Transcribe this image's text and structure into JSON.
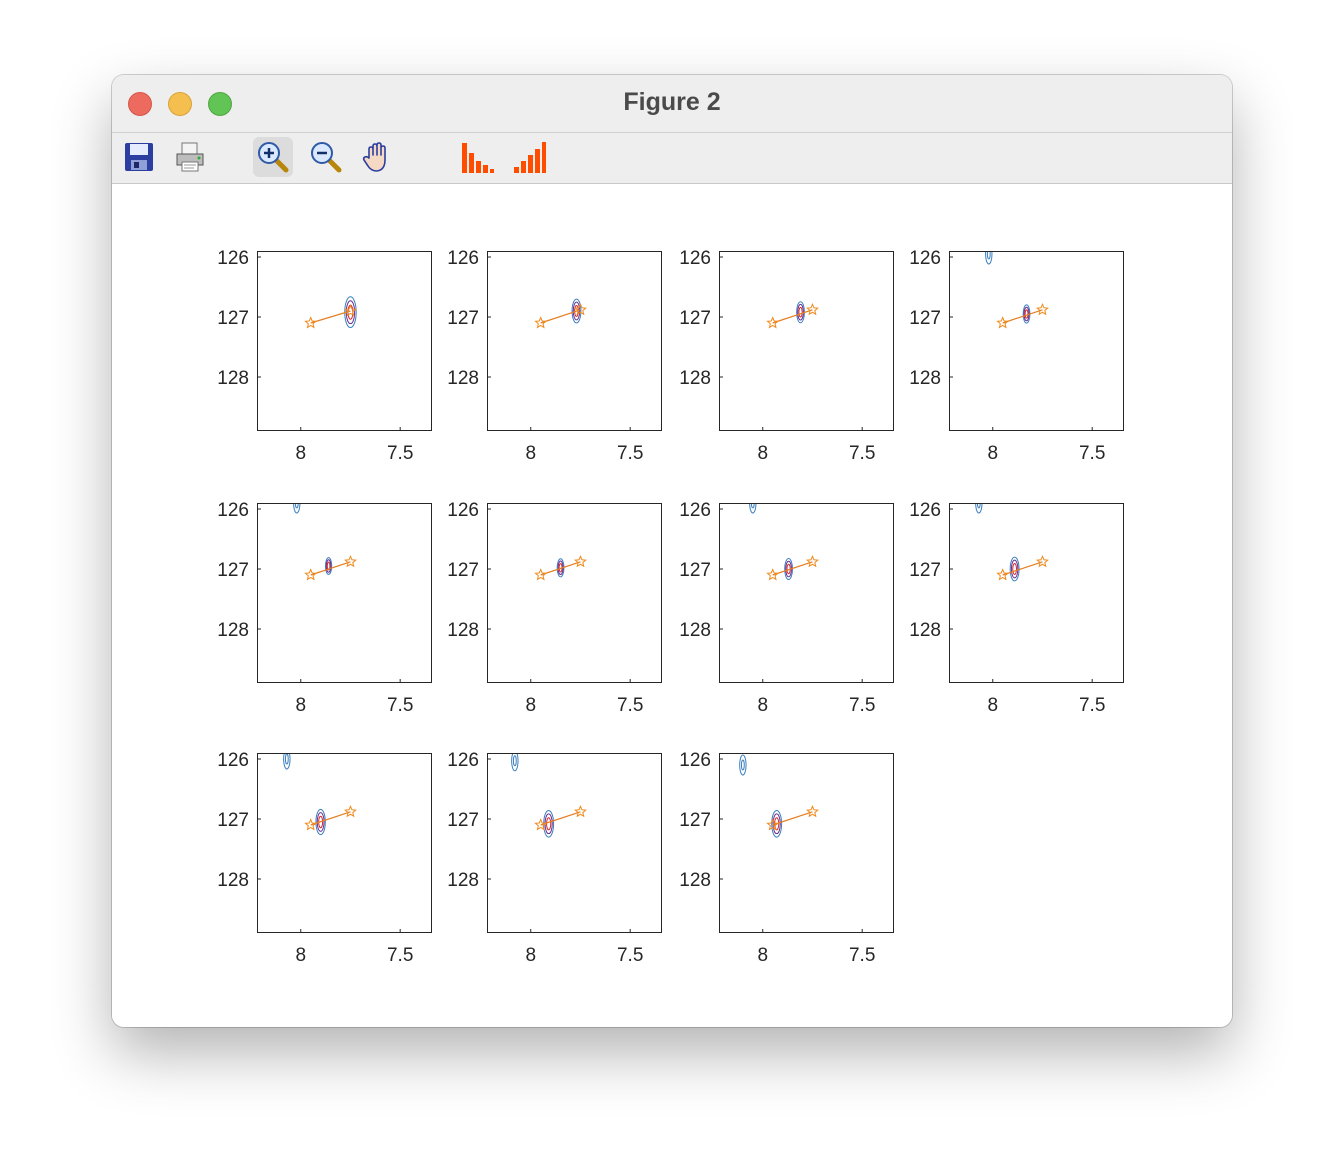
{
  "window": {
    "title": "Figure 2"
  },
  "toolbar": {
    "tools": [
      {
        "name": "save-icon"
      },
      {
        "name": "print-icon"
      },
      {
        "name": "zoom-in-icon"
      },
      {
        "name": "zoom-out-icon"
      },
      {
        "name": "pan-hand-icon"
      },
      {
        "name": "bar-chart-icon"
      },
      {
        "name": "bar-chart-ascending-icon"
      }
    ]
  },
  "colors": {
    "line": "#e67e22",
    "star": "#ef8a1c",
    "contour_outer": "#3a7fc0",
    "contour_inner": "#6a2a8c",
    "contour_core": "#d62728"
  },
  "chart_data": {
    "type": "contour",
    "layout": "3x4 grid (11 subplots)",
    "xlim": [
      8.22,
      7.34
    ],
    "ylim": [
      125.9,
      128.9
    ],
    "x_reversed": true,
    "y_reversed": true,
    "xticks": [
      8,
      7.5
    ],
    "xtick_labels": [
      "8",
      "7.5"
    ],
    "yticks": [
      126,
      127,
      128
    ],
    "ytick_labels": [
      "126",
      "127",
      "128"
    ],
    "subplots": [
      {
        "line": {
          "x": [
            7.95,
            7.75
          ],
          "y": [
            127.1,
            126.9
          ]
        },
        "peak": {
          "x": 7.75,
          "y": 126.92,
          "size": 2.2
        },
        "edge_peak": null
      },
      {
        "line": {
          "x": [
            7.95,
            7.75
          ],
          "y": [
            127.1,
            126.88
          ]
        },
        "peak": {
          "x": 7.77,
          "y": 126.9,
          "size": 1.7
        },
        "edge_peak": null
      },
      {
        "line": {
          "x": [
            7.95,
            7.75
          ],
          "y": [
            127.1,
            126.88
          ]
        },
        "peak": {
          "x": 7.81,
          "y": 126.92,
          "size": 1.5
        },
        "edge_peak": null
      },
      {
        "line": {
          "x": [
            7.95,
            7.75
          ],
          "y": [
            127.1,
            126.88
          ]
        },
        "peak": {
          "x": 7.83,
          "y": 126.95,
          "size": 1.3
        },
        "edge_peak": {
          "x": 8.02,
          "y": 125.95
        }
      },
      {
        "line": {
          "x": [
            7.95,
            7.75
          ],
          "y": [
            127.1,
            126.88
          ]
        },
        "peak": {
          "x": 7.86,
          "y": 126.95,
          "size": 1.2
        },
        "edge_peak": {
          "x": 8.02,
          "y": 125.9
        }
      },
      {
        "line": {
          "x": [
            7.95,
            7.75
          ],
          "y": [
            127.1,
            126.88
          ]
        },
        "peak": {
          "x": 7.85,
          "y": 126.98,
          "size": 1.3
        },
        "edge_peak": null
      },
      {
        "line": {
          "x": [
            7.95,
            7.75
          ],
          "y": [
            127.1,
            126.88
          ]
        },
        "peak": {
          "x": 7.87,
          "y": 127.0,
          "size": 1.5
        },
        "edge_peak": {
          "x": 8.05,
          "y": 125.9
        }
      },
      {
        "line": {
          "x": [
            7.95,
            7.75
          ],
          "y": [
            127.1,
            126.88
          ]
        },
        "peak": {
          "x": 7.89,
          "y": 127.0,
          "size": 1.7
        },
        "edge_peak": {
          "x": 8.07,
          "y": 125.9
        }
      },
      {
        "line": {
          "x": [
            7.95,
            7.75
          ],
          "y": [
            127.1,
            126.88
          ]
        },
        "peak": {
          "x": 7.9,
          "y": 127.05,
          "size": 1.8
        },
        "edge_peak": {
          "x": 8.07,
          "y": 126.0
        }
      },
      {
        "line": {
          "x": [
            7.95,
            7.75
          ],
          "y": [
            127.1,
            126.88
          ]
        },
        "peak": {
          "x": 7.91,
          "y": 127.08,
          "size": 1.9
        },
        "edge_peak": {
          "x": 8.08,
          "y": 126.03
        }
      },
      {
        "line": {
          "x": [
            7.95,
            7.75
          ],
          "y": [
            127.1,
            126.88
          ]
        },
        "peak": {
          "x": 7.93,
          "y": 127.08,
          "size": 1.9
        },
        "edge_peak": {
          "x": 8.1,
          "y": 126.1
        }
      }
    ]
  }
}
